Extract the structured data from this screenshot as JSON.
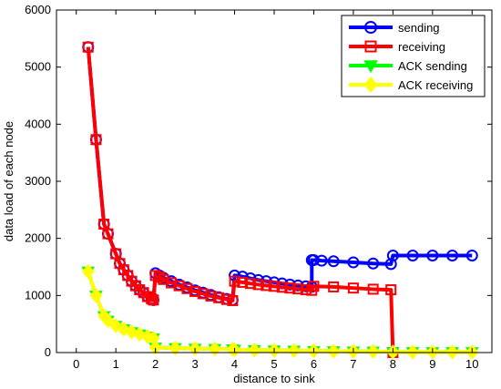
{
  "chart_data": {
    "type": "line",
    "xlabel": "distance to sink",
    "ylabel": "data load of each node",
    "xlim": [
      -0.5,
      10.5
    ],
    "ylim": [
      0,
      6000
    ],
    "xticks": [
      "0",
      "1",
      "2",
      "3",
      "4",
      "5",
      "6",
      "7",
      "8",
      "9",
      "10"
    ],
    "yticks": [
      "0",
      "1000",
      "2000",
      "3000",
      "4000",
      "5000",
      "6000"
    ],
    "grid": false,
    "legend_position": "top-right",
    "series": [
      {
        "name": "sending",
        "color": "#0000ff",
        "marker": "circle",
        "x": [
          0.3,
          0.5,
          0.7,
          0.8,
          1.0,
          1.1,
          1.2,
          1.3,
          1.4,
          1.5,
          1.6,
          1.7,
          1.8,
          1.9,
          1.95,
          2.0,
          2.1,
          2.2,
          2.4,
          2.6,
          2.8,
          3.0,
          3.2,
          3.4,
          3.6,
          3.8,
          3.95,
          4.0,
          4.2,
          4.4,
          4.6,
          4.8,
          5.0,
          5.2,
          5.4,
          5.6,
          5.8,
          5.95,
          5.95,
          6.0,
          6.2,
          6.5,
          7.0,
          7.5,
          7.95,
          8.0,
          8.5,
          9.0,
          9.5,
          10.0
        ],
        "y": [
          5350,
          3730,
          2250,
          2080,
          1730,
          1560,
          1450,
          1350,
          1250,
          1170,
          1100,
          1050,
          980,
          940,
          920,
          1390,
          1350,
          1310,
          1250,
          1190,
          1140,
          1090,
          1050,
          1010,
          970,
          940,
          920,
          1350,
          1330,
          1300,
          1270,
          1250,
          1230,
          1210,
          1190,
          1175,
          1160,
          1150,
          1620,
          1620,
          1610,
          1600,
          1580,
          1560,
          1550,
          1700,
          1700,
          1700,
          1700,
          1700
        ]
      },
      {
        "name": "receiving",
        "color": "#ff0000",
        "marker": "square",
        "x": [
          0.3,
          0.5,
          0.7,
          0.8,
          1.0,
          1.1,
          1.2,
          1.3,
          1.4,
          1.5,
          1.6,
          1.7,
          1.8,
          1.9,
          1.95,
          2.0,
          2.1,
          2.2,
          2.4,
          2.6,
          2.8,
          3.0,
          3.2,
          3.4,
          3.6,
          3.8,
          3.95,
          4.0,
          4.2,
          4.4,
          4.6,
          4.8,
          5.0,
          5.2,
          5.4,
          5.6,
          5.8,
          5.95,
          6.0,
          6.5,
          7.0,
          7.5,
          7.95,
          8.0
        ],
        "y": [
          5350,
          3730,
          2250,
          2080,
          1730,
          1560,
          1450,
          1350,
          1250,
          1170,
          1100,
          1050,
          980,
          940,
          920,
          1350,
          1320,
          1280,
          1220,
          1170,
          1120,
          1070,
          1030,
          990,
          960,
          930,
          910,
          1250,
          1230,
          1210,
          1190,
          1175,
          1160,
          1145,
          1130,
          1115,
          1100,
          1090,
          1160,
          1150,
          1130,
          1110,
          1100,
          0
        ]
      },
      {
        "name": "ACK sending",
        "color": "#00ff00",
        "marker": "triangle-down",
        "x": [
          0.3,
          0.5,
          0.7,
          0.8,
          1.0,
          1.2,
          1.4,
          1.6,
          1.8,
          1.95,
          2.0,
          2.5,
          3.0,
          3.5,
          3.95,
          4.0,
          4.5,
          5.0,
          5.5,
          6.0,
          6.5,
          7.0,
          7.5,
          8.0,
          8.5,
          9.0,
          9.5,
          10.0
        ],
        "y": [
          1420,
          1000,
          640,
          560,
          470,
          410,
          360,
          320,
          280,
          250,
          90,
          80,
          70,
          65,
          60,
          50,
          45,
          40,
          35,
          30,
          25,
          22,
          20,
          10,
          10,
          10,
          10,
          10
        ]
      },
      {
        "name": "ACK receiving",
        "color": "#ffff00",
        "marker": "diamond",
        "x": [
          0.3,
          0.5,
          0.7,
          0.8,
          1.0,
          1.2,
          1.4,
          1.6,
          1.8,
          1.95,
          2.0,
          2.5,
          3.0,
          3.5,
          3.95,
          4.0,
          4.5,
          5.0,
          5.5,
          6.0,
          6.5,
          7.0,
          7.5,
          8.0,
          8.5,
          9.0,
          9.5,
          10.0
        ],
        "y": [
          1420,
          1000,
          640,
          560,
          470,
          410,
          360,
          320,
          280,
          250,
          90,
          80,
          70,
          65,
          60,
          50,
          45,
          40,
          35,
          30,
          25,
          22,
          20,
          10,
          10,
          10,
          10,
          10
        ]
      }
    ]
  }
}
